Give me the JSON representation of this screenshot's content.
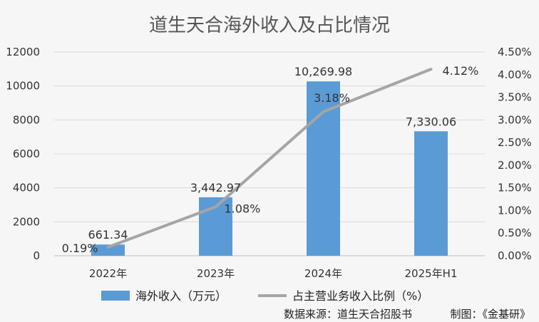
{
  "chart_data": {
    "type": "bar+line",
    "title": "道生天合海外收入及占比情况",
    "categories": [
      "2022年",
      "2023年",
      "2024年",
      "2025年H1"
    ],
    "series": [
      {
        "name": "海外收入（万元）",
        "type": "bar",
        "axis": "left",
        "color": "#5b9bd5",
        "values": [
          661.34,
          3442.97,
          10269.98,
          7330.06
        ],
        "labels": [
          "661.34",
          "3,442.97",
          "10,269.98",
          "7,330.06"
        ]
      },
      {
        "name": "占主营业务收入比例（%）",
        "type": "line",
        "axis": "right",
        "color": "#a5a5a5",
        "values": [
          0.19,
          1.08,
          3.18,
          4.12
        ],
        "labels": [
          "0.19%",
          "1.08%",
          "3.18%",
          "4.12%"
        ]
      }
    ],
    "y_left": {
      "lim": [
        0,
        12000
      ],
      "ticks": [
        "0",
        "2000",
        "4000",
        "6000",
        "8000",
        "10000",
        "12000"
      ]
    },
    "y_right": {
      "lim": [
        0,
        4.5
      ],
      "ticks": [
        "0.00%",
        "0.50%",
        "1.00%",
        "1.50%",
        "2.00%",
        "2.50%",
        "3.00%",
        "3.50%",
        "4.00%",
        "4.50%"
      ]
    },
    "grid": "horizontal",
    "legend": "bottom"
  },
  "source": "数据来源：道生天合招股书",
  "credit": "制图：《金基研》"
}
